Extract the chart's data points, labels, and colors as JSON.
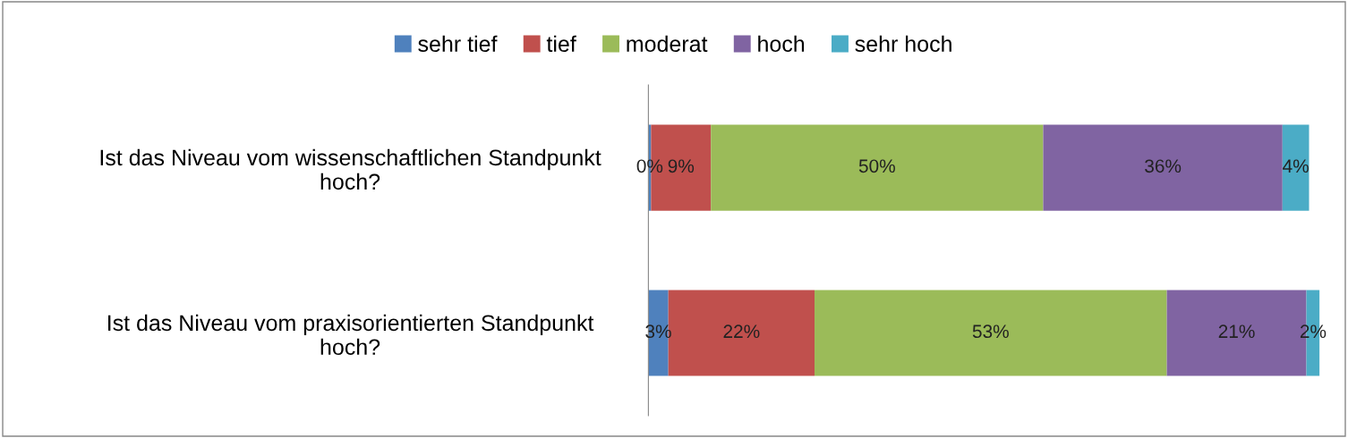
{
  "chart_data": {
    "type": "bar",
    "orientation": "horizontal",
    "stacked": true,
    "categories": [
      "Ist das Niveau vom wissenschaftlichen Standpunkt\nhoch?",
      "Ist das Niveau vom praxisorientierten Standpunkt\nhoch?"
    ],
    "series": [
      {
        "name": "sehr tief",
        "color": "#4f81bd",
        "values": [
          0.4,
          3
        ],
        "value_labels": [
          "0%",
          "3%"
        ]
      },
      {
        "name": "tief",
        "color": "#c0504d",
        "values": [
          9,
          22
        ],
        "value_labels": [
          "9%",
          "22%"
        ]
      },
      {
        "name": "moderat",
        "color": "#9bbb59",
        "values": [
          50,
          53
        ],
        "value_labels": [
          "50%",
          "53%"
        ]
      },
      {
        "name": "hoch",
        "color": "#8064a2",
        "values": [
          36,
          21
        ],
        "value_labels": [
          "36%",
          "21%"
        ]
      },
      {
        "name": "sehr hoch",
        "color": "#4bacc6",
        "values": [
          4,
          2
        ],
        "value_labels": [
          "4%",
          "2%"
        ]
      }
    ],
    "legend": "top",
    "grid": false
  }
}
